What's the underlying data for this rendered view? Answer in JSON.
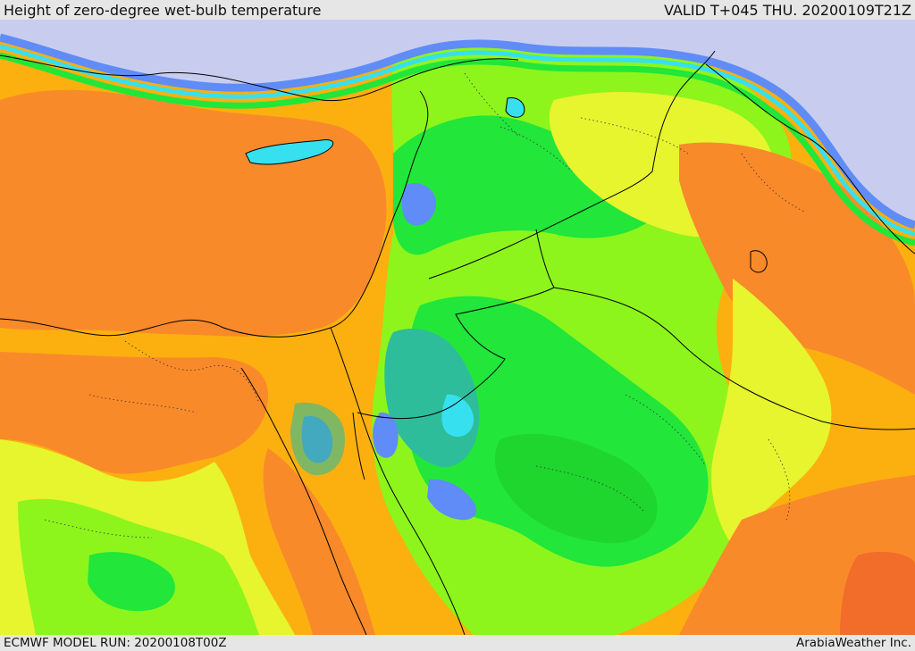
{
  "header": {
    "title": "Height of zero-degree wet-bulb temperature",
    "valid": "VALID T+045 THU. 20200109T21Z"
  },
  "footer": {
    "model_run": "ECMWF MODEL RUN: 20200108T00Z",
    "credit": "ArabiaWeather Inc."
  },
  "palette": {
    "lowest_land": "#c8cdf0",
    "blue_dark": "#4a52e8",
    "blue": "#5f8cf6",
    "cyan": "#36e0ee",
    "teal": "#2ebd9a",
    "green_dark": "#1fd62e",
    "green": "#22e63a",
    "lime": "#8df51c",
    "yellow": "#e6f52e",
    "amber": "#fbb00f",
    "orange": "#f98a2a",
    "red_orange": "#f26c2a"
  }
}
